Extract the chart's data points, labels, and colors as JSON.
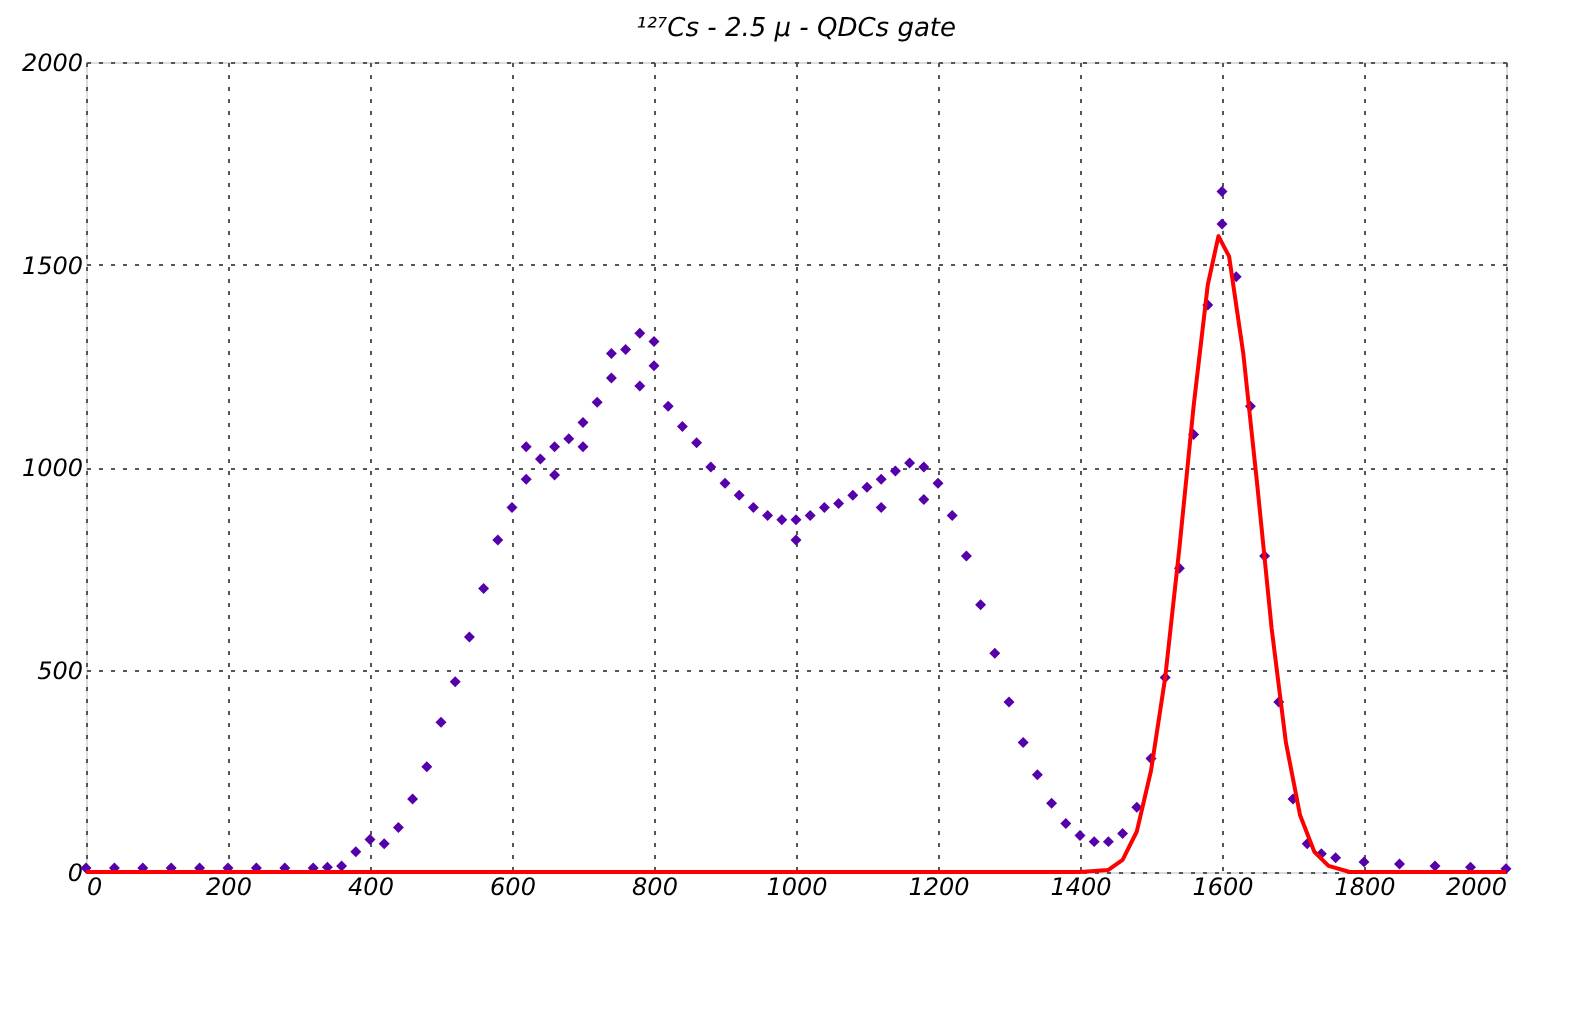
{
  "chart_data": {
    "type": "scatter",
    "title": "¹²⁷Cs - 2.5 μ - QDCs gate",
    "xlim": [
      0,
      2000
    ],
    "xticks": [
      0,
      200,
      400,
      600,
      800,
      1000,
      1200,
      1400,
      1600,
      1800,
      2000
    ],
    "ylim": [
      0,
      2000
    ],
    "yticks": [
      0,
      500,
      1000,
      1500,
      2000
    ],
    "grid": true,
    "marker": "diamond",
    "series": [
      {
        "color": "#5500aa",
        "x": [
          0,
          40,
          80,
          120,
          160,
          200,
          240,
          280,
          320,
          340,
          360,
          380,
          400,
          420,
          440,
          460,
          480,
          500,
          520,
          540,
          560,
          580,
          600,
          620,
          640,
          660,
          680,
          700,
          720,
          740,
          760,
          780,
          800,
          820,
          840,
          860,
          880,
          900,
          920,
          940,
          960,
          980,
          1000,
          1020,
          1040,
          1060,
          1080,
          1100,
          1120,
          1140,
          1160,
          1180,
          1200,
          1220,
          1240,
          1260,
          1280,
          1300,
          1320,
          1340,
          1360,
          1380,
          1400,
          1420,
          1440,
          1460,
          1480,
          1500,
          1520,
          1540,
          1560,
          1580,
          1600,
          1620,
          1640,
          1660,
          1680,
          1700,
          1720,
          1740,
          1760,
          1800,
          1850,
          1900,
          1950,
          2000,
          620,
          660,
          700,
          740,
          780,
          800,
          1180,
          1600,
          1120,
          1000
        ],
        "values": [
          10,
          10,
          10,
          10,
          10,
          10,
          10,
          10,
          10,
          12,
          15,
          50,
          80,
          70,
          110,
          180,
          260,
          370,
          470,
          580,
          700,
          820,
          900,
          970,
          1020,
          1050,
          1070,
          1110,
          1160,
          1220,
          1290,
          1330,
          1250,
          1150,
          1100,
          1060,
          1000,
          960,
          930,
          900,
          880,
          870,
          870,
          880,
          900,
          910,
          930,
          950,
          970,
          990,
          1010,
          1000,
          960,
          880,
          780,
          660,
          540,
          420,
          320,
          240,
          170,
          120,
          90,
          75,
          75,
          95,
          160,
          280,
          480,
          750,
          1080,
          1400,
          1600,
          1470,
          1150,
          780,
          420,
          180,
          70,
          45,
          35,
          25,
          20,
          15,
          12,
          8,
          1050,
          980,
          1050,
          1280,
          1200,
          1310,
          920,
          1680,
          900,
          820
        ]
      },
      {
        "type": "line",
        "color": "#ff0000",
        "line_style": "solid",
        "marker": "none",
        "x": [
          0,
          1400,
          1440,
          1460,
          1480,
          1500,
          1520,
          1540,
          1560,
          1580,
          1595,
          1610,
          1630,
          1650,
          1670,
          1690,
          1710,
          1730,
          1750,
          1780,
          2000
        ],
        "values": [
          0,
          0,
          5,
          30,
          100,
          250,
          480,
          800,
          1150,
          1450,
          1570,
          1520,
          1280,
          950,
          600,
          320,
          140,
          50,
          15,
          0,
          0
        ]
      }
    ]
  }
}
